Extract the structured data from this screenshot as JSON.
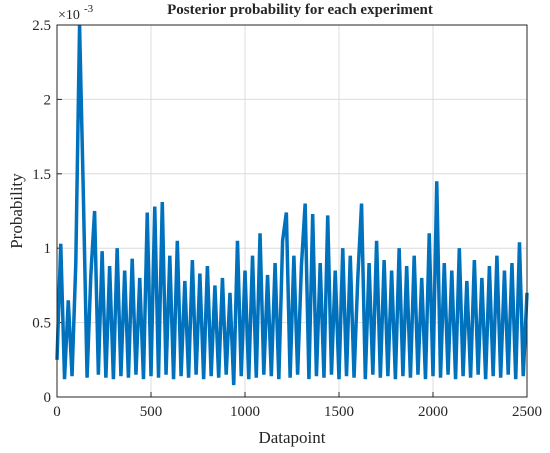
{
  "chart_data": {
    "type": "line",
    "title": "Posterior probability for each experiment",
    "xlabel": "Datapoint",
    "ylabel": "Probability",
    "y_multiplier_base": "×10",
    "y_multiplier_exponent": "-3",
    "x": [
      0,
      20,
      40,
      60,
      80,
      100,
      120,
      140,
      160,
      180,
      200,
      220,
      240,
      260,
      280,
      300,
      320,
      340,
      360,
      380,
      400,
      420,
      440,
      460,
      480,
      500,
      520,
      540,
      560,
      580,
      600,
      620,
      640,
      660,
      680,
      700,
      720,
      740,
      760,
      780,
      800,
      820,
      840,
      860,
      880,
      900,
      920,
      940,
      960,
      980,
      1000,
      1020,
      1040,
      1060,
      1080,
      1100,
      1120,
      1140,
      1160,
      1180,
      1200,
      1220,
      1240,
      1260,
      1280,
      1300,
      1320,
      1340,
      1360,
      1380,
      1400,
      1420,
      1440,
      1460,
      1480,
      1500,
      1520,
      1540,
      1560,
      1580,
      1600,
      1620,
      1640,
      1660,
      1680,
      1700,
      1720,
      1740,
      1760,
      1780,
      1800,
      1820,
      1840,
      1860,
      1880,
      1900,
      1920,
      1940,
      1960,
      1980,
      2000,
      2020,
      2040,
      2060,
      2080,
      2100,
      2120,
      2140,
      2160,
      2180,
      2200,
      2220,
      2240,
      2260,
      2280,
      2300,
      2320,
      2340,
      2360,
      2380,
      2400,
      2420,
      2440,
      2460,
      2480,
      2500
    ],
    "series": [
      {
        "name": "Probability",
        "color": "#0072bd",
        "values": [
          0.25,
          1.03,
          0.12,
          0.65,
          0.14,
          0.9,
          2.5,
          1.37,
          0.13,
          0.82,
          1.25,
          0.15,
          0.98,
          0.13,
          0.88,
          0.12,
          1.0,
          0.14,
          0.85,
          0.13,
          0.93,
          0.15,
          0.8,
          0.12,
          1.24,
          0.14,
          1.28,
          0.13,
          1.31,
          0.15,
          0.95,
          0.12,
          1.05,
          0.14,
          0.78,
          0.13,
          0.92,
          0.15,
          0.83,
          0.12,
          0.88,
          0.14,
          0.75,
          0.13,
          0.8,
          0.15,
          0.7,
          0.08,
          1.05,
          0.14,
          0.85,
          0.12,
          0.95,
          0.13,
          1.1,
          0.15,
          0.82,
          0.14,
          0.9,
          0.12,
          1.05,
          1.24,
          0.13,
          0.95,
          0.15,
          0.88,
          1.3,
          0.12,
          1.23,
          0.14,
          0.9,
          0.13,
          1.22,
          0.15,
          0.85,
          0.12,
          1.0,
          0.14,
          0.95,
          0.13,
          0.8,
          1.3,
          0.12,
          0.9,
          0.15,
          1.05,
          0.13,
          0.92,
          0.14,
          0.85,
          0.12,
          1.0,
          0.14,
          0.88,
          0.13,
          0.95,
          0.15,
          0.8,
          0.12,
          1.1,
          0.14,
          1.45,
          0.13,
          0.9,
          0.15,
          0.85,
          0.12,
          1.0,
          0.14,
          0.78,
          0.13,
          0.92,
          0.15,
          0.8,
          0.12,
          0.88,
          0.14,
          0.95,
          0.13,
          0.85,
          0.15,
          0.9,
          0.12,
          1.04,
          0.14,
          0.7
        ]
      }
    ],
    "xlim": [
      0,
      2500
    ],
    "xticks": [
      0,
      500,
      1000,
      1500,
      2000,
      2500
    ],
    "ylim": [
      0,
      2.5
    ],
    "yticks": [
      0,
      0.5,
      1,
      1.5,
      2,
      2.5
    ],
    "grid": true
  }
}
